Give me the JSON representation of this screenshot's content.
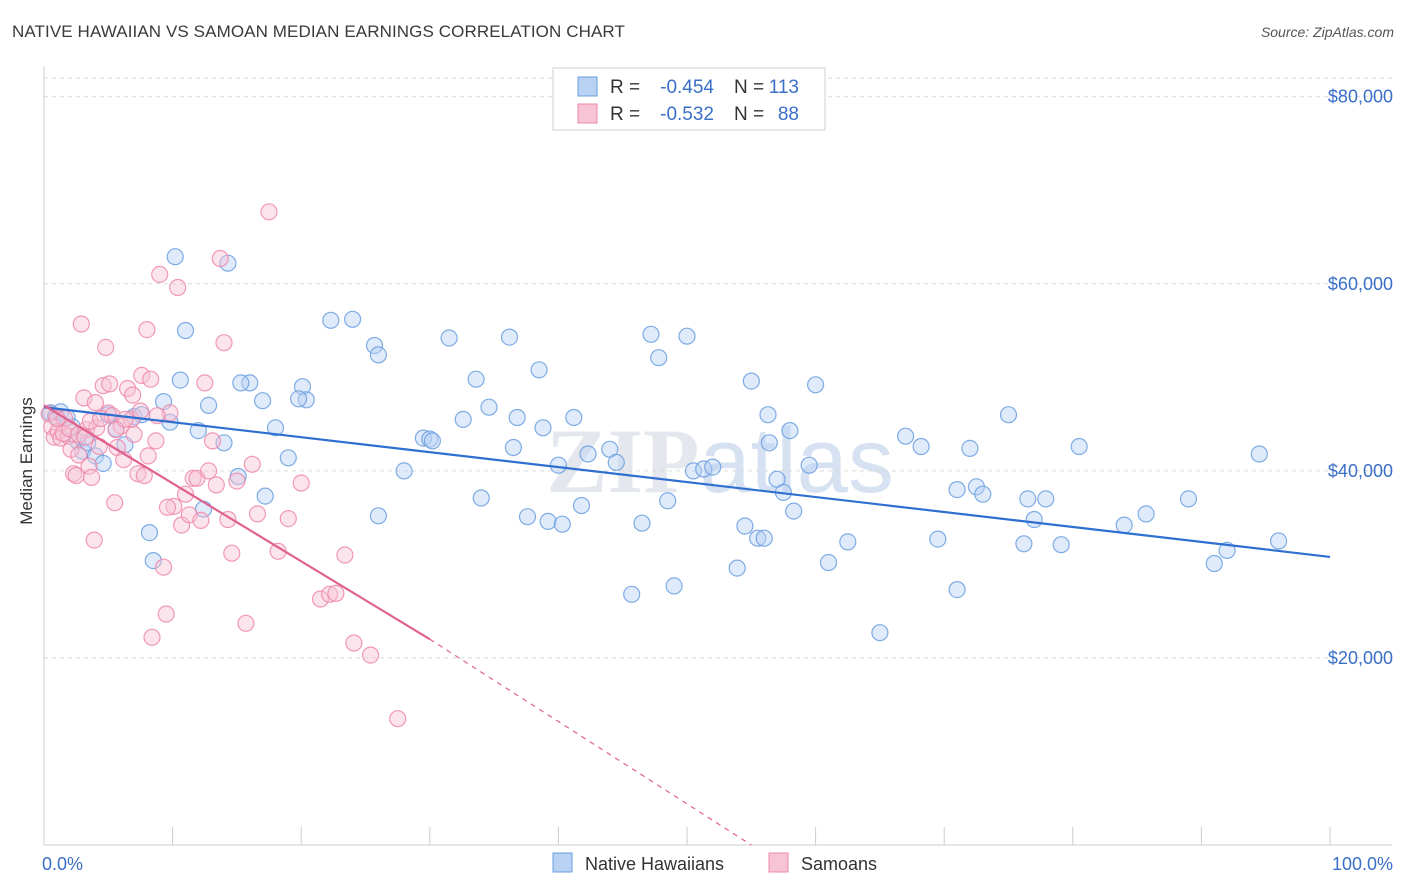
{
  "header": {
    "title": "NATIVE HAWAIIAN VS SAMOAN MEDIAN EARNINGS CORRELATION CHART",
    "source": "Source: ZipAtlas.com"
  },
  "colors": {
    "blue": "#6a9fe0",
    "blue_line": "#2e6fd0",
    "blue_fill": "#b9d1f3",
    "pink": "#ee88aa",
    "pink_line": "#e0628e",
    "pink_fill": "#f7c4d5",
    "grid": "#d9d9d9",
    "axis_label_blue": "#3a6fc7"
  },
  "watermark": "ZIPatlas",
  "chart_data": {
    "type": "scatter",
    "title": "NATIVE HAWAIIAN VS SAMOAN MEDIAN EARNINGS CORRELATION CHART",
    "xlabel": "",
    "ylabel": "Median Earnings",
    "xlim": [
      0,
      100
    ],
    "ylim": [
      0,
      82000
    ],
    "x_tick_labels": [
      "0.0%",
      "100.0%"
    ],
    "y_ticks": [
      20000,
      40000,
      60000,
      80000
    ],
    "y_tick_labels": [
      "$20,000",
      "$40,000",
      "$60,000",
      "$80,000"
    ],
    "grid": "horizontal dashed",
    "legend": {
      "placement": "top-center",
      "entries": [
        {
          "r_label": "R = ",
          "r_value": "-0.454",
          "n_label": "N = ",
          "n_value": "113"
        },
        {
          "r_label": "R = ",
          "r_value": "-0.532",
          "n_label": "N = ",
          "n_value": "88"
        }
      ]
    },
    "bottom_legend": [
      "Native Hawaiians",
      "Samoans"
    ],
    "series": [
      {
        "name": "Native Hawaiians",
        "trend": {
          "x": [
            0,
            100
          ],
          "y": [
            46800,
            30800
          ]
        },
        "points": [
          [
            0.5,
            46200
          ],
          [
            0.9,
            45800
          ],
          [
            1.3,
            46300
          ],
          [
            1.8,
            45700
          ],
          [
            2.2,
            44700
          ],
          [
            2.6,
            43200
          ],
          [
            3.0,
            42100
          ],
          [
            3.4,
            43000
          ],
          [
            4.0,
            41600
          ],
          [
            4.6,
            40800
          ],
          [
            5.0,
            46000
          ],
          [
            5.6,
            44500
          ],
          [
            6.3,
            42800
          ],
          [
            7.0,
            45800
          ],
          [
            7.6,
            46000
          ],
          [
            8.2,
            33400
          ],
          [
            8.5,
            30400
          ],
          [
            9.3,
            47400
          ],
          [
            10.2,
            62900
          ],
          [
            10.6,
            49700
          ],
          [
            11.0,
            55000
          ],
          [
            12.0,
            44300
          ],
          [
            12.8,
            47000
          ],
          [
            14.0,
            43000
          ],
          [
            15.1,
            39400
          ],
          [
            14.3,
            62200
          ],
          [
            16.0,
            49400
          ],
          [
            15.3,
            49400
          ],
          [
            17.0,
            47500
          ],
          [
            17.2,
            37300
          ],
          [
            18.0,
            44600
          ],
          [
            19.0,
            41400
          ],
          [
            20.1,
            49000
          ],
          [
            20.4,
            47600
          ],
          [
            22.3,
            56100
          ],
          [
            24.0,
            56200
          ],
          [
            25.7,
            53400
          ],
          [
            26.0,
            52400
          ],
          [
            26.0,
            35200
          ],
          [
            28.0,
            40000
          ],
          [
            29.5,
            43500
          ],
          [
            30.0,
            43400
          ],
          [
            30.2,
            43200
          ],
          [
            31.5,
            54200
          ],
          [
            32.6,
            45500
          ],
          [
            33.6,
            49800
          ],
          [
            34.0,
            37100
          ],
          [
            34.6,
            46800
          ],
          [
            36.2,
            54300
          ],
          [
            36.5,
            42500
          ],
          [
            36.8,
            45700
          ],
          [
            37.6,
            35100
          ],
          [
            38.5,
            50800
          ],
          [
            39.2,
            34600
          ],
          [
            40.0,
            40600
          ],
          [
            40.3,
            34300
          ],
          [
            41.2,
            45700
          ],
          [
            41.8,
            36300
          ],
          [
            42.3,
            41800
          ],
          [
            44.0,
            42300
          ],
          [
            44.5,
            40900
          ],
          [
            45.7,
            26800
          ],
          [
            46.5,
            34400
          ],
          [
            47.2,
            54600
          ],
          [
            47.8,
            52100
          ],
          [
            48.5,
            36800
          ],
          [
            49.0,
            27700
          ],
          [
            50.0,
            54400
          ],
          [
            50.5,
            40000
          ],
          [
            51.3,
            40200
          ],
          [
            52.0,
            40400
          ],
          [
            53.9,
            29600
          ],
          [
            54.5,
            34100
          ],
          [
            55.0,
            49600
          ],
          [
            55.5,
            32800
          ],
          [
            56.0,
            32800
          ],
          [
            56.3,
            46000
          ],
          [
            56.4,
            43000
          ],
          [
            57.0,
            39100
          ],
          [
            57.5,
            37700
          ],
          [
            58.3,
            35700
          ],
          [
            58.0,
            44300
          ],
          [
            59.5,
            40600
          ],
          [
            60.0,
            49200
          ],
          [
            61.0,
            30200
          ],
          [
            62.5,
            32400
          ],
          [
            65.0,
            22700
          ],
          [
            67.0,
            43700
          ],
          [
            68.2,
            42600
          ],
          [
            69.5,
            32700
          ],
          [
            71.0,
            38000
          ],
          [
            71.0,
            27300
          ],
          [
            72.0,
            42400
          ],
          [
            72.5,
            38300
          ],
          [
            73.0,
            37500
          ],
          [
            75.0,
            46000
          ],
          [
            76.2,
            32200
          ],
          [
            76.5,
            37000
          ],
          [
            77.0,
            34800
          ],
          [
            77.9,
            37000
          ],
          [
            79.1,
            32100
          ],
          [
            80.5,
            42600
          ],
          [
            84.0,
            34200
          ],
          [
            85.7,
            35400
          ],
          [
            89.0,
            37000
          ],
          [
            91.0,
            30100
          ],
          [
            94.5,
            41800
          ],
          [
            96.0,
            32500
          ],
          [
            92.0,
            31500
          ],
          [
            38.8,
            44600
          ],
          [
            12.4,
            35900
          ],
          [
            19.8,
            47700
          ],
          [
            9.8,
            45200
          ]
        ]
      },
      {
        "name": "Samoans",
        "trend": {
          "x": [
            0,
            30
          ],
          "y": [
            47000,
            22000
          ]
        },
        "trend_ext": {
          "x": [
            30,
            55
          ],
          "y": [
            22000,
            0
          ]
        },
        "points": [
          [
            0.4,
            46100
          ],
          [
            0.6,
            44700
          ],
          [
            0.8,
            43600
          ],
          [
            1.1,
            44200
          ],
          [
            1.3,
            43500
          ],
          [
            1.6,
            45600
          ],
          [
            1.9,
            43700
          ],
          [
            2.1,
            42300
          ],
          [
            2.3,
            39700
          ],
          [
            2.5,
            39500
          ],
          [
            2.7,
            41700
          ],
          [
            2.9,
            55700
          ],
          [
            3.1,
            47800
          ],
          [
            3.3,
            44400
          ],
          [
            3.5,
            40500
          ],
          [
            3.7,
            39300
          ],
          [
            3.9,
            32600
          ],
          [
            4.1,
            44600
          ],
          [
            4.3,
            42600
          ],
          [
            4.6,
            49100
          ],
          [
            4.8,
            53200
          ],
          [
            5.0,
            46200
          ],
          [
            5.3,
            45900
          ],
          [
            5.5,
            36600
          ],
          [
            5.7,
            42500
          ],
          [
            6.0,
            44800
          ],
          [
            6.2,
            41200
          ],
          [
            6.5,
            48800
          ],
          [
            6.8,
            45500
          ],
          [
            7.0,
            43900
          ],
          [
            7.3,
            39700
          ],
          [
            7.6,
            50200
          ],
          [
            7.8,
            39500
          ],
          [
            8.1,
            41600
          ],
          [
            8.4,
            22200
          ],
          [
            8.7,
            43200
          ],
          [
            9.0,
            61000
          ],
          [
            9.3,
            29700
          ],
          [
            9.5,
            24700
          ],
          [
            9.8,
            46200
          ],
          [
            10.1,
            36200
          ],
          [
            10.4,
            59600
          ],
          [
            10.7,
            34200
          ],
          [
            11.0,
            37500
          ],
          [
            11.3,
            35300
          ],
          [
            11.6,
            39200
          ],
          [
            11.9,
            39200
          ],
          [
            12.2,
            34700
          ],
          [
            12.5,
            49400
          ],
          [
            12.8,
            40000
          ],
          [
            13.1,
            43200
          ],
          [
            13.4,
            38500
          ],
          [
            13.7,
            62700
          ],
          [
            14.0,
            53700
          ],
          [
            14.3,
            34800
          ],
          [
            14.6,
            31200
          ],
          [
            15.0,
            38900
          ],
          [
            15.7,
            23700
          ],
          [
            16.2,
            40700
          ],
          [
            16.6,
            35400
          ],
          [
            17.5,
            67700
          ],
          [
            18.2,
            31400
          ],
          [
            19.0,
            34900
          ],
          [
            20.0,
            38700
          ],
          [
            21.5,
            26300
          ],
          [
            22.2,
            26800
          ],
          [
            22.7,
            26900
          ],
          [
            23.4,
            31000
          ],
          [
            24.1,
            21600
          ],
          [
            25.4,
            20300
          ],
          [
            27.5,
            13500
          ],
          [
            1.0,
            45600
          ],
          [
            1.5,
            44000
          ],
          [
            2.0,
            44500
          ],
          [
            2.7,
            43900
          ],
          [
            3.2,
            43600
          ],
          [
            3.6,
            45300
          ],
          [
            4.0,
            47300
          ],
          [
            4.4,
            45600
          ],
          [
            5.1,
            49300
          ],
          [
            5.6,
            44400
          ],
          [
            6.3,
            45500
          ],
          [
            6.9,
            48100
          ],
          [
            7.5,
            46400
          ],
          [
            8.0,
            55100
          ],
          [
            8.3,
            49800
          ],
          [
            8.8,
            45900
          ],
          [
            9.6,
            36100
          ]
        ]
      }
    ]
  },
  "ui": {
    "legend_series_labels": [
      "Native Hawaiians",
      "Samoans"
    ]
  }
}
